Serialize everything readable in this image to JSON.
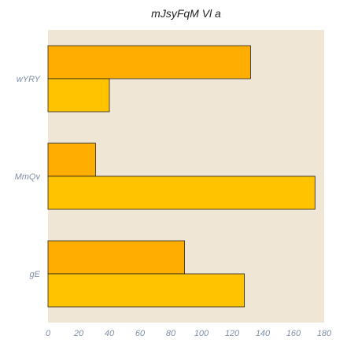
{
  "chart_data": {
    "type": "bar",
    "orientation": "horizontal",
    "title": "mJsyFqM  Vl a",
    "xlabel": "",
    "ylabel": "",
    "categories": [
      "wYRY",
      "MmQv",
      "gE"
    ],
    "series": [
      {
        "color": "#ffae00",
        "values": [
          132,
          31,
          89
        ]
      },
      {
        "color": "#ffc300",
        "values": [
          40,
          174,
          128
        ]
      }
    ],
    "xlim": [
      0,
      180
    ],
    "xticks": [
      0,
      20,
      40,
      60,
      80,
      100,
      120,
      140,
      160,
      180
    ],
    "grid": false,
    "legend": "none",
    "plot_background": "#f0e6d6",
    "bar_edge_color": "#222222"
  }
}
